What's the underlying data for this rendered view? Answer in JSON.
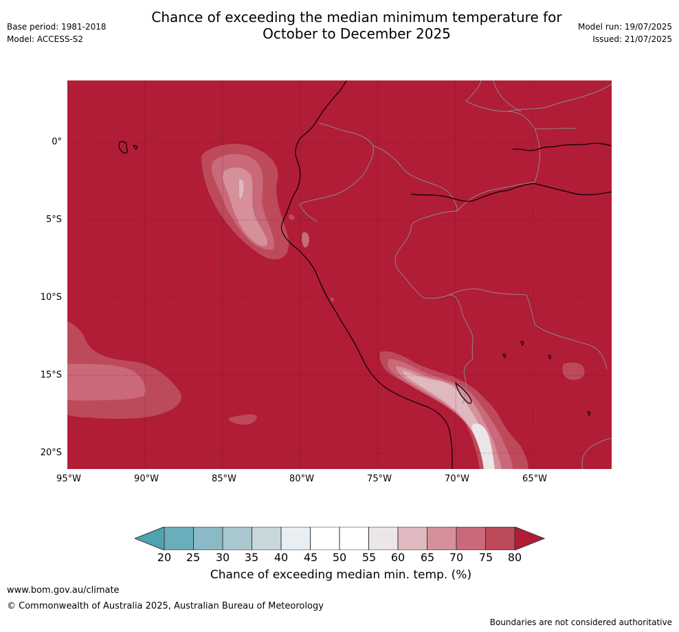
{
  "title": {
    "line1": "Chance of exceeding the median minimum temperature for",
    "line2": "October to December 2025"
  },
  "meta": {
    "base_period": "Base period: 1981-2018",
    "model": "Model: ACCESS-S2",
    "model_run": "Model run: 19/07/2025",
    "issued": "Issued: 21/07/2025"
  },
  "map": {
    "background_color": "#b11c37",
    "lat_labels": [
      "0°",
      "5°S",
      "10°S",
      "15°S",
      "20°S"
    ],
    "lon_labels": [
      "95°W",
      "90°W",
      "85°W",
      "80°W",
      "75°W",
      "70°W",
      "65°W"
    ]
  },
  "colorbar": {
    "ticks": [
      "20",
      "25",
      "30",
      "35",
      "40",
      "45",
      "50",
      "55",
      "60",
      "65",
      "70",
      "75",
      "80"
    ],
    "colors": [
      "#6aadbb",
      "#8bb9c5",
      "#a9c7ce",
      "#c7d7dc",
      "#e8eef1",
      "#ffffff",
      "#ffffff",
      "#ebe6e7",
      "#e0b8bf",
      "#d5909a",
      "#c9697a",
      "#bd4a5a"
    ],
    "under_color": "#4ea3b2",
    "over_color": "#b11c37",
    "label": "Chance of exceeding median min. temp. (%)"
  },
  "footer": {
    "website": "www.bom.gov.au/climate",
    "copyright": "© Commonwealth of Australia 2025, Australian Bureau of Meteorology",
    "disclaimer": "Boundaries are not considered authoritative"
  }
}
